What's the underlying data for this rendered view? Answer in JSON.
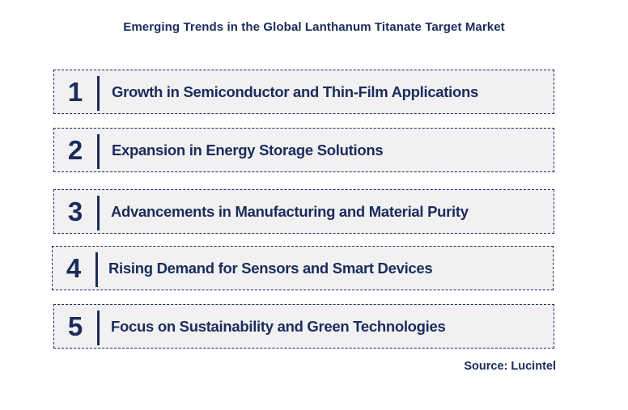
{
  "title": "Emerging Trends in the Global Lanthanum Titanate Target Market",
  "trends": [
    {
      "number": "1",
      "label": "Growth in Semiconductor and Thin-Film Applications"
    },
    {
      "number": "2",
      "label": "Expansion in Energy Storage Solutions"
    },
    {
      "number": "3",
      "label": "Advancements in Manufacturing and Material Purity"
    },
    {
      "number": "4",
      "label": "Rising Demand for Sensors and Smart Devices"
    },
    {
      "number": "5",
      "label": "Focus on Sustainability and Green Technologies"
    }
  ],
  "source": "Source: Lucintel",
  "colors": {
    "text": "#1a2b5c",
    "card_bg": "#f1f1f1",
    "border": "#1a2b5c"
  }
}
